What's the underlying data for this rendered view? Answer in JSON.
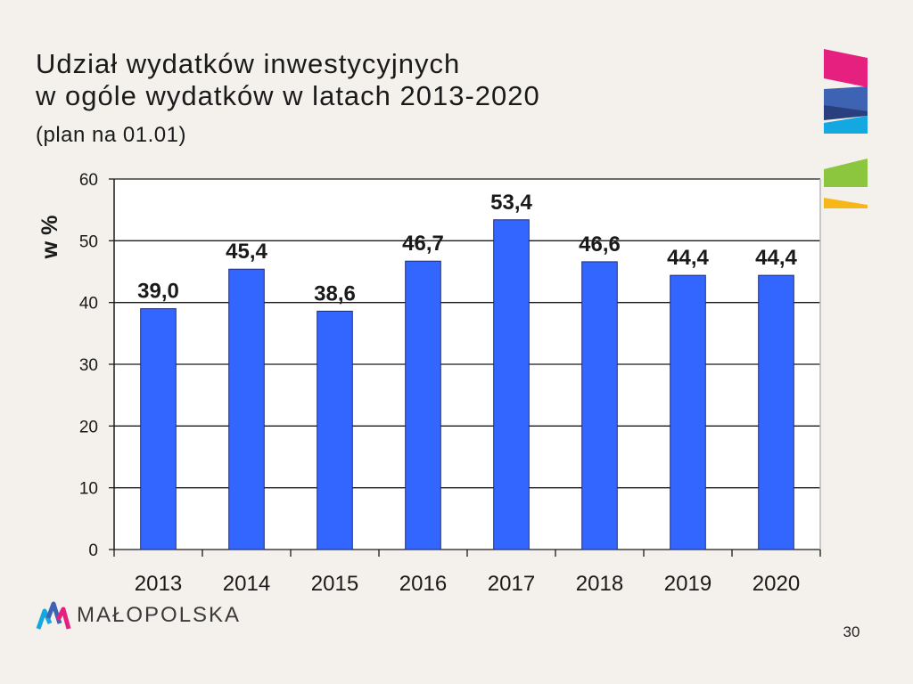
{
  "slide": {
    "title_line1": "Udział wydatków inwestycyjnych",
    "title_line2": "w ogóle wydatków w latach 2013-2020",
    "subtitle": "(plan na 01.01)",
    "brand": "MAŁOPOLSKA",
    "page_number": "30"
  },
  "colors": {
    "bar": "#3366ff",
    "background": "#f4f1ec",
    "grid": "#1a1a1a",
    "deco_pink": "#e6207e",
    "deco_blue": "#3e63b3",
    "deco_navy": "#2a3f7e",
    "deco_cyan": "#13a8e0",
    "deco_green": "#8cc63f",
    "deco_yellow": "#f7b718"
  },
  "icons": {
    "logo": "malopolska-logo-icon",
    "decoration": "corner-color-stripes-icon"
  },
  "chart_data": {
    "type": "bar",
    "title": "",
    "xlabel": "",
    "ylabel": "w %",
    "ylim": [
      0,
      60
    ],
    "yticks": [
      0,
      10,
      20,
      30,
      40,
      50,
      60
    ],
    "grid": true,
    "categories": [
      "2013",
      "2014",
      "2015",
      "2016",
      "2017",
      "2018",
      "2019",
      "2020"
    ],
    "values": [
      39.0,
      45.4,
      38.6,
      46.7,
      53.4,
      46.6,
      44.4,
      44.4
    ],
    "data_labels": [
      "39,0",
      "45,4",
      "38,6",
      "46,7",
      "53,4",
      "46,6",
      "44,4",
      "44,4"
    ]
  }
}
